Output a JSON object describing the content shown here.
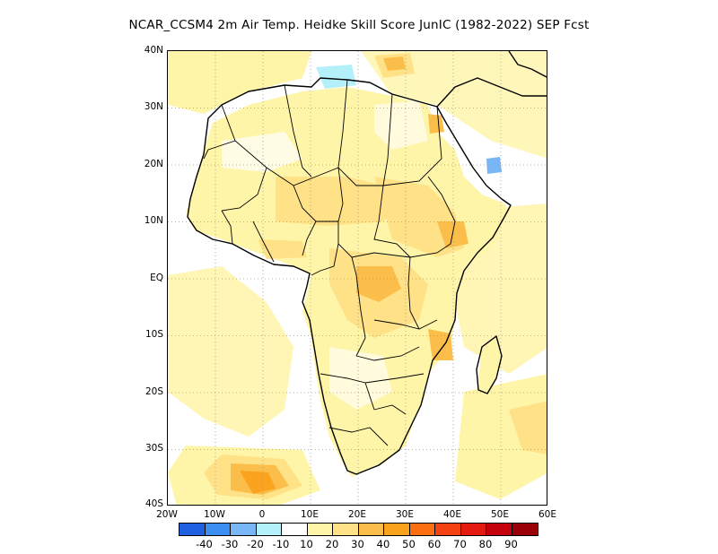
{
  "title": "NCAR_CCSM4  2m Air Temp. Heidke Skill Score JunIC (1982-2022) SEP Fcst",
  "map": {
    "lat_labels": [
      "40N",
      "30N",
      "20N",
      "10N",
      "EQ",
      "10S",
      "20S",
      "30S",
      "40S"
    ],
    "lon_labels": [
      "20W",
      "10W",
      "0",
      "10E",
      "20E",
      "30E",
      "40E",
      "50E",
      "60E"
    ],
    "lat_range": [
      -40,
      40
    ],
    "lon_range": [
      -20,
      60
    ],
    "grid": "dotted"
  },
  "colorbar": {
    "colors": [
      "#1f5fe0",
      "#3c8ef0",
      "#78b6f5",
      "#b4f0fa",
      "#ffffff",
      "#fff5a8",
      "#ffe287",
      "#fbbe4b",
      "#fba21e",
      "#fb6e12",
      "#f44214",
      "#e41a10",
      "#c4000d",
      "#9a0008"
    ],
    "labels": [
      "-40",
      "-30",
      "-20",
      "-10",
      "10",
      "20",
      "30",
      "40",
      "50",
      "60",
      "70",
      "80",
      "90"
    ]
  }
}
